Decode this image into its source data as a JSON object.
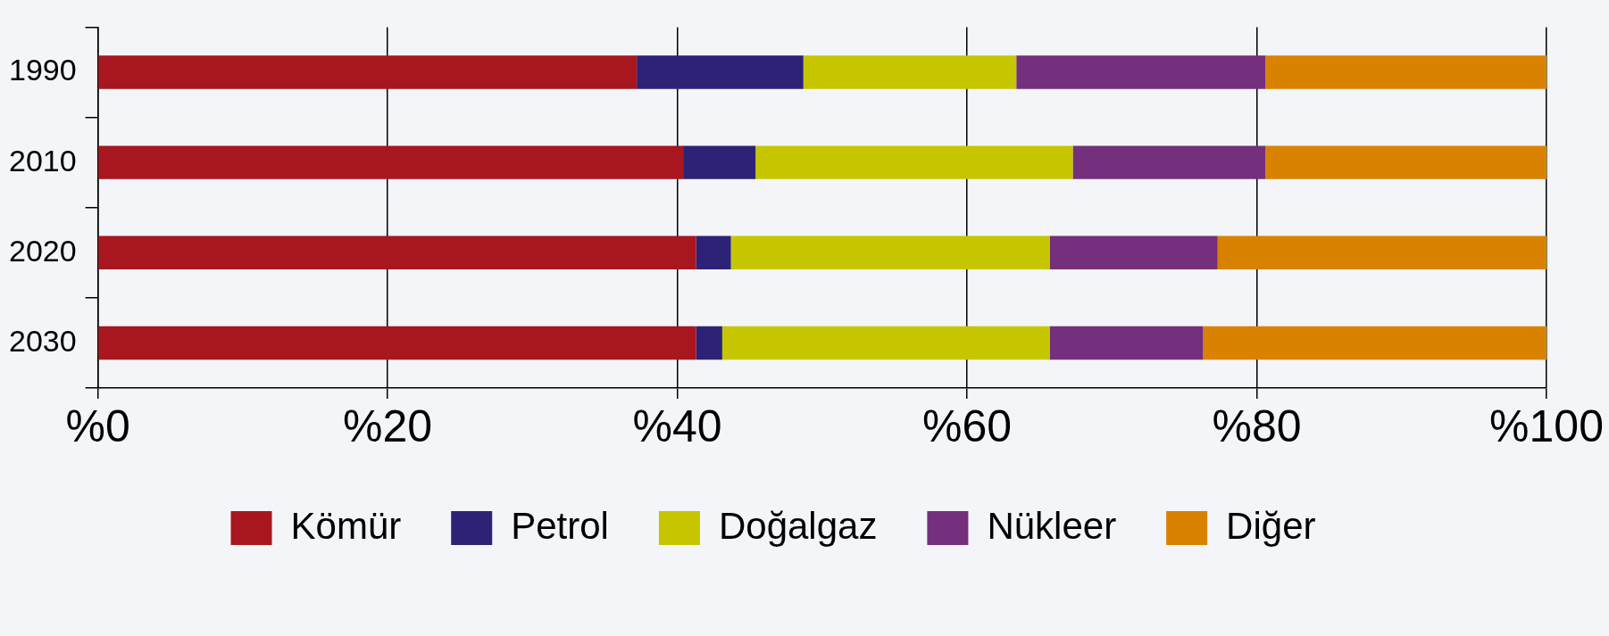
{
  "chart_data": {
    "type": "bar",
    "orientation": "horizontal",
    "stacked": true,
    "categories": [
      "1990",
      "2010",
      "2020",
      "2030"
    ],
    "series": [
      {
        "name": "Kömür",
        "color": "#a8161f",
        "values": [
          37.2,
          40.4,
          41.3,
          41.3
        ]
      },
      {
        "name": "Petrol",
        "color": "#2c2377",
        "values": [
          11.5,
          5.0,
          2.4,
          1.8
        ]
      },
      {
        "name": "Doğalgaz",
        "color": "#c6c600",
        "values": [
          14.7,
          21.9,
          22.0,
          22.6
        ]
      },
      {
        "name": "Nükleer",
        "color": "#74307c",
        "values": [
          17.2,
          13.3,
          11.6,
          10.6
        ]
      },
      {
        "name": "Diğer",
        "color": "#d98200",
        "values": [
          19.4,
          19.4,
          22.7,
          23.7
        ]
      }
    ],
    "xlim": [
      0,
      100
    ],
    "xticks": [
      {
        "value": 0,
        "label": "%0"
      },
      {
        "value": 20,
        "label": "%20"
      },
      {
        "value": 40,
        "label": "%40"
      },
      {
        "value": 60,
        "label": "%60"
      },
      {
        "value": 80,
        "label": "%80"
      },
      {
        "value": 100,
        "label": "%100"
      }
    ],
    "grid": "x",
    "legend": "bottom"
  }
}
